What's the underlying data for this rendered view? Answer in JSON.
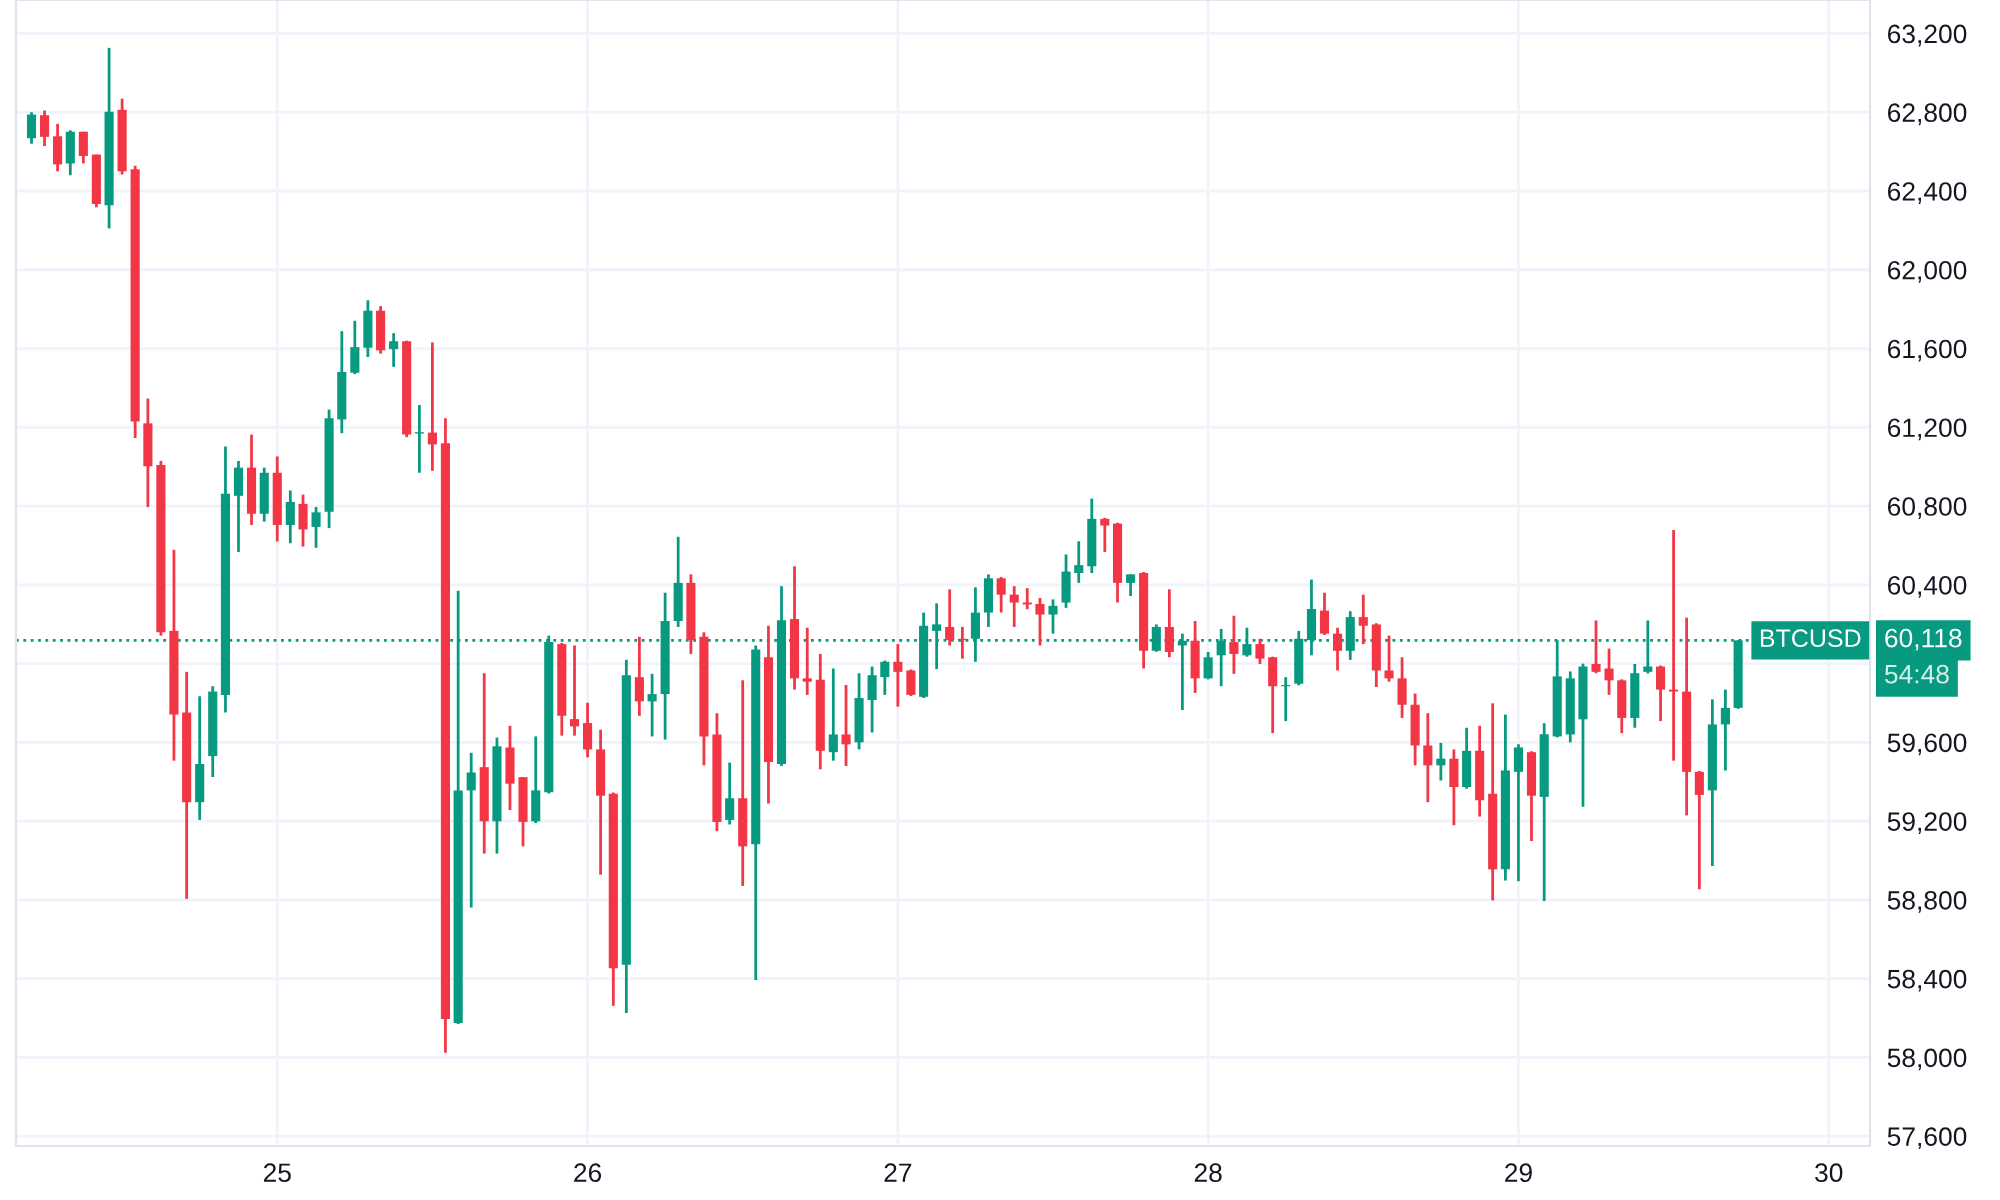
{
  "chart_data": {
    "type": "candlestick",
    "x": [
      24.208,
      24.25,
      24.292,
      24.333,
      24.375,
      24.417,
      24.458,
      24.5,
      24.542,
      24.583,
      24.625,
      24.667,
      24.708,
      24.75,
      24.792,
      24.833,
      24.875,
      24.917,
      24.958,
      25,
      25.042,
      25.083,
      25.125,
      25.167,
      25.208,
      25.25,
      25.292,
      25.333,
      25.375,
      25.417,
      25.458,
      25.5,
      25.542,
      25.583,
      25.625,
      25.667,
      25.708,
      25.75,
      25.792,
      25.833,
      25.875,
      25.917,
      25.958,
      26,
      26.042,
      26.083,
      26.125,
      26.167,
      26.208,
      26.25,
      26.292,
      26.333,
      26.375,
      26.417,
      26.458,
      26.5,
      26.542,
      26.583,
      26.625,
      26.667,
      26.708,
      26.75,
      26.792,
      26.833,
      26.875,
      26.917,
      26.958,
      27,
      27.042,
      27.083,
      27.125,
      27.167,
      27.208,
      27.25,
      27.292,
      27.333,
      27.375,
      27.417,
      27.458,
      27.5,
      27.542,
      27.583,
      27.625,
      27.667,
      27.708,
      27.75,
      27.792,
      27.833,
      27.875,
      27.917,
      27.958,
      28,
      28.042,
      28.083,
      28.125,
      28.167,
      28.208,
      28.25,
      28.292,
      28.333,
      28.375,
      28.417,
      28.458,
      28.5,
      28.542,
      28.583,
      28.625,
      28.667,
      28.708,
      28.75,
      28.792,
      28.833,
      28.875,
      28.917,
      28.958,
      29,
      29.042,
      29.083,
      29.125,
      29.167,
      29.208,
      29.25,
      29.292,
      29.333,
      29.375,
      29.417,
      29.458,
      29.5,
      29.542,
      29.583,
      29.625,
      29.667,
      29.708
    ],
    "ohlc": [
      [
        62668,
        62800,
        62640,
        62788
      ],
      [
        62785,
        62809,
        62628,
        62675
      ],
      [
        62678,
        62741,
        62500,
        62535
      ],
      [
        62540,
        62708,
        62480,
        62701
      ],
      [
        62701,
        62701,
        62540,
        62578
      ],
      [
        62585,
        62585,
        62317,
        62334
      ],
      [
        62327,
        63127,
        62210,
        62802
      ],
      [
        62812,
        62869,
        62484,
        62500
      ],
      [
        62511,
        62528,
        61146,
        61230
      ],
      [
        61220,
        61346,
        60795,
        61002
      ],
      [
        61009,
        61029,
        60142,
        60159
      ],
      [
        60166,
        60578,
        59507,
        59741
      ],
      [
        59751,
        59958,
        58805,
        59296
      ],
      [
        59296,
        59834,
        59206,
        59490
      ],
      [
        59530,
        59885,
        59424,
        59858
      ],
      [
        59841,
        61102,
        59751,
        60862
      ],
      [
        60852,
        61029,
        60567,
        60995
      ],
      [
        60995,
        61163,
        60704,
        60761
      ],
      [
        60761,
        60995,
        60721,
        60969
      ],
      [
        60969,
        61052,
        60620,
        60704
      ],
      [
        60704,
        60879,
        60611,
        60821
      ],
      [
        60811,
        60858,
        60594,
        60681
      ],
      [
        60694,
        60795,
        60588,
        60768
      ],
      [
        60771,
        61290,
        60688,
        61246
      ],
      [
        61240,
        61688,
        61170,
        61481
      ],
      [
        61477,
        61741,
        61470,
        61607
      ],
      [
        61604,
        61845,
        61557,
        61792
      ],
      [
        61792,
        61815,
        61574,
        61591
      ],
      [
        61597,
        61678,
        61507,
        61637
      ],
      [
        61637,
        61640,
        61150,
        61163
      ],
      [
        61168,
        61313,
        60969,
        61175
      ],
      [
        61173,
        61631,
        60979,
        61113
      ],
      [
        61119,
        61246,
        58024,
        58195
      ],
      [
        58175,
        60370,
        58170,
        59356
      ],
      [
        59356,
        59547,
        58761,
        59447
      ],
      [
        59474,
        59951,
        59035,
        59199
      ],
      [
        59199,
        59624,
        59035,
        59580
      ],
      [
        59574,
        59684,
        59256,
        59390
      ],
      [
        59423,
        59423,
        59072,
        59196
      ],
      [
        59199,
        59630,
        59190,
        59356
      ],
      [
        59346,
        60142,
        59340,
        60109
      ],
      [
        60099,
        60105,
        59634,
        59735
      ],
      [
        59718,
        60092,
        59634,
        59681
      ],
      [
        59698,
        59801,
        59524,
        59564
      ],
      [
        59564,
        59664,
        58928,
        59329
      ],
      [
        59339,
        59345,
        58262,
        58453
      ],
      [
        58470,
        60019,
        58225,
        59941
      ],
      [
        59931,
        60136,
        59735,
        59808
      ],
      [
        59808,
        59948,
        59630,
        59845
      ],
      [
        59845,
        60360,
        59614,
        60216
      ],
      [
        60216,
        60644,
        60186,
        60410
      ],
      [
        60410,
        60453,
        60049,
        60119
      ],
      [
        60136,
        60159,
        59483,
        59630
      ],
      [
        59640,
        59748,
        59149,
        59196
      ],
      [
        59206,
        59497,
        59183,
        59316
      ],
      [
        59316,
        59915,
        58871,
        59072
      ],
      [
        59082,
        60092,
        58393,
        60072
      ],
      [
        60032,
        60192,
        59289,
        59500
      ],
      [
        59490,
        60393,
        59480,
        60220
      ],
      [
        60226,
        60494,
        59868,
        59925
      ],
      [
        59925,
        60182,
        59841,
        59908
      ],
      [
        59918,
        60049,
        59463,
        59557
      ],
      [
        59550,
        59975,
        59507,
        59640
      ],
      [
        59640,
        59891,
        59480,
        59590
      ],
      [
        59600,
        59951,
        59564,
        59825
      ],
      [
        59815,
        59985,
        59650,
        59941
      ],
      [
        59931,
        60015,
        59841,
        60009
      ],
      [
        60009,
        60099,
        59781,
        59958
      ],
      [
        59965,
        59970,
        59835,
        59841
      ],
      [
        59831,
        60259,
        59825,
        60192
      ],
      [
        60166,
        60306,
        59972,
        60199
      ],
      [
        60186,
        60377,
        60092,
        60119
      ],
      [
        60126,
        60186,
        60025,
        60119
      ],
      [
        60126,
        60387,
        60009,
        60259
      ],
      [
        60259,
        60453,
        60186,
        60433
      ],
      [
        60433,
        60440,
        60259,
        60350
      ],
      [
        60350,
        60393,
        60186,
        60310
      ],
      [
        60310,
        60383,
        60276,
        60300
      ],
      [
        60303,
        60333,
        60092,
        60249
      ],
      [
        60249,
        60326,
        60152,
        60293
      ],
      [
        60310,
        60554,
        60283,
        60467
      ],
      [
        60460,
        60621,
        60410,
        60500
      ],
      [
        60494,
        60838,
        60460,
        60735
      ],
      [
        60735,
        60740,
        60567,
        60701
      ],
      [
        60711,
        60715,
        60310,
        60410
      ],
      [
        60410,
        60453,
        60343,
        60453
      ],
      [
        60460,
        60465,
        59975,
        60065
      ],
      [
        60065,
        60199,
        60060,
        60186
      ],
      [
        60186,
        60377,
        60032,
        60059
      ],
      [
        60092,
        60152,
        59764,
        60116
      ],
      [
        60116,
        60216,
        59851,
        59925
      ],
      [
        59925,
        60059,
        59920,
        60032
      ],
      [
        60042,
        60176,
        59885,
        60116
      ],
      [
        60109,
        60243,
        59948,
        60049
      ],
      [
        60042,
        60182,
        60035,
        60099
      ],
      [
        60099,
        60126,
        59998,
        60025
      ],
      [
        60032,
        60035,
        59647,
        59885
      ],
      [
        59885,
        59931,
        59708,
        59891
      ],
      [
        59898,
        60166,
        59890,
        60126
      ],
      [
        60119,
        60427,
        60042,
        60277
      ],
      [
        60269,
        60360,
        60145,
        60152
      ],
      [
        60152,
        60182,
        59965,
        60065
      ],
      [
        60065,
        60266,
        60019,
        60236
      ],
      [
        60236,
        60350,
        60099,
        60192
      ],
      [
        60199,
        60205,
        59881,
        59965
      ],
      [
        59965,
        60142,
        59908,
        59925
      ],
      [
        59925,
        60032,
        59724,
        59791
      ],
      [
        59791,
        59848,
        59483,
        59584
      ],
      [
        59584,
        59748,
        59296,
        59483
      ],
      [
        59483,
        59597,
        59406,
        59517
      ],
      [
        59517,
        59564,
        59179,
        59373
      ],
      [
        59373,
        59674,
        59365,
        59557
      ],
      [
        59557,
        59684,
        59223,
        59306
      ],
      [
        59339,
        59798,
        58797,
        58955
      ],
      [
        58955,
        59741,
        58898,
        59457
      ],
      [
        59450,
        59590,
        58895,
        59574
      ],
      [
        59550,
        59555,
        59099,
        59329
      ],
      [
        59323,
        59697,
        58794,
        59641
      ],
      [
        59630,
        60119,
        59625,
        59935
      ],
      [
        59640,
        59960,
        59600,
        59925
      ],
      [
        59717,
        60000,
        59273,
        59985
      ],
      [
        59998,
        60219,
        59951,
        59958
      ],
      [
        59975,
        60076,
        59841,
        59915
      ],
      [
        59915,
        59920,
        59647,
        59724
      ],
      [
        59724,
        59998,
        59674,
        59951
      ],
      [
        59958,
        60219,
        59950,
        59985
      ],
      [
        59985,
        59990,
        59708,
        59868
      ],
      [
        59868,
        60678,
        59507,
        59858
      ],
      [
        59858,
        60233,
        59229,
        59450
      ],
      [
        59450,
        59455,
        58854,
        59333
      ],
      [
        59356,
        59818,
        58972,
        59691
      ],
      [
        59691,
        59868,
        59457,
        59775
      ],
      [
        59775,
        60118,
        59770,
        60118
      ]
    ],
    "colors": [
      "#089981",
      "#f23645",
      "#f23645",
      "#089981",
      "#f23645",
      "#f23645",
      "#089981",
      "#f23645",
      "#f23645",
      "#f23645",
      "#f23645",
      "#f23645",
      "#f23645",
      "#089981",
      "#089981",
      "#089981",
      "#089981",
      "#f23645",
      "#089981",
      "#f23645",
      "#089981",
      "#f23645",
      "#089981",
      "#089981",
      "#089981",
      "#089981",
      "#089981",
      "#f23645",
      "#089981",
      "#f23645",
      "#089981",
      "#f23645",
      "#f23645",
      "#089981",
      "#089981",
      "#f23645",
      "#089981",
      "#f23645",
      "#f23645",
      "#089981",
      "#089981",
      "#f23645",
      "#f23645",
      "#f23645",
      "#f23645",
      "#f23645",
      "#089981",
      "#f23645",
      "#089981",
      "#089981",
      "#089981",
      "#f23645",
      "#f23645",
      "#f23645",
      "#089981",
      "#f23645",
      "#089981",
      "#f23645",
      "#089981",
      "#f23645",
      "#f23645",
      "#f23645",
      "#089981",
      "#f23645",
      "#089981",
      "#089981",
      "#089981",
      "#f23645",
      "#f23645",
      "#089981",
      "#089981",
      "#f23645",
      "#f23645",
      "#089981",
      "#089981",
      "#f23645",
      "#f23645",
      "#f23645",
      "#f23645",
      "#089981",
      "#089981",
      "#089981",
      "#089981",
      "#f23645",
      "#f23645",
      "#089981",
      "#f23645",
      "#089981",
      "#f23645",
      "#089981",
      "#f23645",
      "#089981",
      "#089981",
      "#f23645",
      "#089981",
      "#f23645",
      "#f23645",
      "#089981",
      "#089981",
      "#089981",
      "#f23645",
      "#f23645",
      "#089981",
      "#f23645",
      "#f23645",
      "#f23645",
      "#f23645",
      "#f23645",
      "#f23645",
      "#089981",
      "#f23645",
      "#089981",
      "#f23645",
      "#f23645",
      "#089981",
      "#089981",
      "#f23645",
      "#089981",
      "#089981",
      "#089981",
      "#089981",
      "#f23645",
      "#f23645",
      "#f23645",
      "#089981",
      "#089981",
      "#f23645",
      "#f23645",
      "#f23645",
      "#f23645",
      "#089981",
      "#089981",
      "#089981"
    ],
    "xlim": [
      24.158,
      30.133
    ],
    "xticks": [
      25,
      26,
      27,
      28,
      29,
      30
    ],
    "ylim": [
      57550,
      63370
    ],
    "yticks": [
      {
        "value": 57600,
        "label": "57,600"
      },
      {
        "value": 58000,
        "label": "58,000"
      },
      {
        "value": 58400,
        "label": "58,400"
      },
      {
        "value": 58800,
        "label": "58,800"
      },
      {
        "value": 59200,
        "label": "59,200"
      },
      {
        "value": 59600,
        "label": "59,600"
      },
      {
        "value": 60000,
        "label": null
      },
      {
        "value": 60400,
        "label": "60,400"
      },
      {
        "value": 60800,
        "label": "60,800"
      },
      {
        "value": 61200,
        "label": "61,200"
      },
      {
        "value": 61600,
        "label": "61,600"
      },
      {
        "value": 62000,
        "label": "62,000"
      },
      {
        "value": 62400,
        "label": "62,400"
      },
      {
        "value": 62800,
        "label": "62,800"
      },
      {
        "value": 63200,
        "label": "63,200"
      }
    ],
    "grid": true,
    "ref_lines": [
      {
        "axis": "y",
        "value": 60118,
        "label": "BTCUSD",
        "color": "#089981",
        "line_style": "dotted"
      }
    ],
    "annotations": [
      "60,118",
      "54:48"
    ]
  }
}
